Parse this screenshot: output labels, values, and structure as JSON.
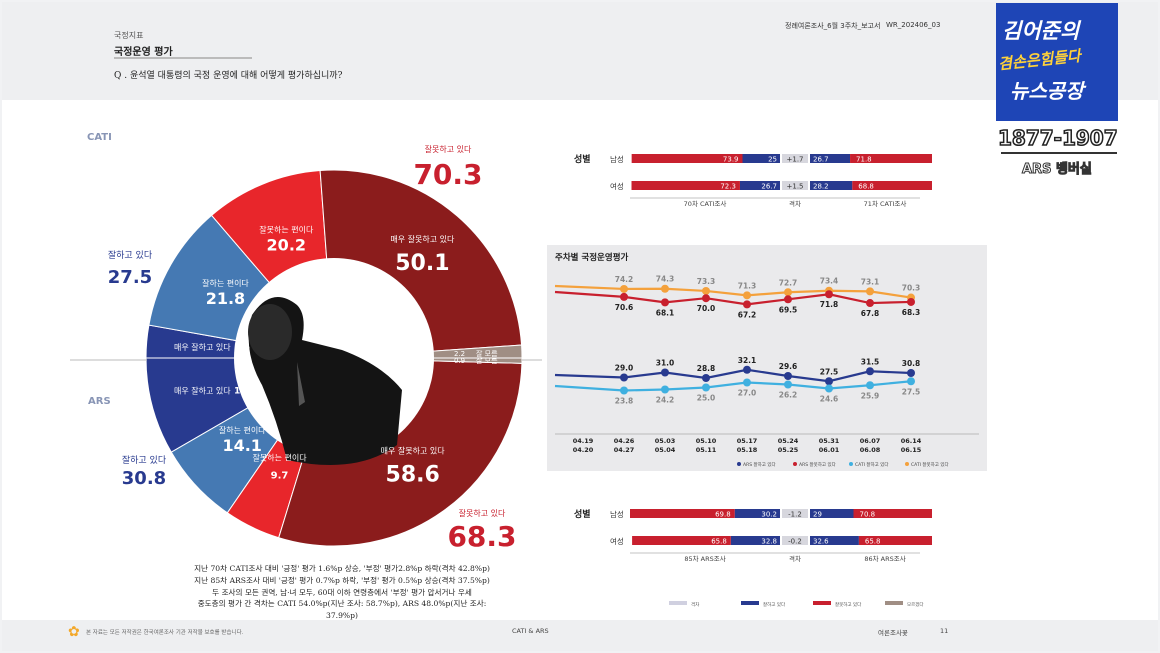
{
  "header": {
    "section": "국정지표",
    "title": "국정운영 평가",
    "question": "Q . 윤석열 대통령의 국정 운영에 대해 어떻게 평가하십니까?",
    "doc_name": "정례여론조사_6월 3주차_보고서",
    "doc_code": "WR_202406_03"
  },
  "logo": {
    "line1": "김어준의",
    "line2": "겸손은힘들다",
    "line3": "뉴스공장",
    "phone": "1877-1907",
    "sub": "ARS 뱅버실"
  },
  "colors": {
    "navy": "#283a8f",
    "mid_blue": "#4579b3",
    "red": "#e8262b",
    "dark_red": "#8b1c1c",
    "grey": "#a08e84",
    "orange": "#f4a13c",
    "light_blue": "#3fb0e0"
  },
  "chart_data": [
    {
      "type": "pie",
      "title": "",
      "ring_labels": {
        "outer": "CATI",
        "inner": "ARS"
      },
      "cati": {
        "slices": [
          {
            "label": "매우 잘하고 있다",
            "value": 5.6
          },
          {
            "label": "잘하는 편이다",
            "value": 21.8
          },
          {
            "label": "잘못하는 편이다",
            "value": 20.2
          },
          {
            "label": "매우 잘못하고 있다",
            "value": 50.1
          },
          {
            "label": "잘 모름",
            "value": 2.2
          }
        ],
        "positive_label": "잘하고 있다",
        "positive_total": 27.5,
        "negative_label": "잘못하고 있다",
        "negative_total": 70.3
      },
      "ars": {
        "slices": [
          {
            "label": "매우 잘하고 있다",
            "value": 16.7
          },
          {
            "label": "잘하는 편이다",
            "value": 14.1
          },
          {
            "label": "잘못하는 편이다",
            "value": 9.7
          },
          {
            "label": "매우 잘못하고 있다",
            "value": 58.6
          },
          {
            "label": "잘 모름",
            "value": 0.9
          }
        ],
        "positive_label": "잘하고 있다",
        "positive_total": 30.8,
        "negative_label": "잘못하고 있다",
        "negative_total": 68.3
      }
    },
    {
      "type": "bar",
      "title": "성별",
      "subtitle": "CATI",
      "categories": [
        "남성",
        "여성"
      ],
      "prev": [
        {
          "negative": 73.9,
          "positive": 25.0
        },
        {
          "negative": 72.3,
          "positive": 26.7
        }
      ],
      "diff": [
        "+1.7",
        "+1.5"
      ],
      "curr": [
        {
          "positive": 26.7,
          "negative": 71.8
        },
        {
          "positive": 28.2,
          "negative": 68.8
        }
      ],
      "axis": [
        "70차 CATI조사",
        "격차",
        "71차 CATI조사"
      ]
    },
    {
      "type": "line",
      "title": "주차별 국정운영평가",
      "x": [
        "04.19\n04.20",
        "04.26\n04.27",
        "05.03\n05.04",
        "05.10\n05.11",
        "05.17\n05.18",
        "05.24\n05.25",
        "05.31\n06.01",
        "06.07\n06.08",
        "06.14\n06.15"
      ],
      "series": [
        {
          "name": "ARS 잘하고 있다",
          "values": [
            null,
            29.0,
            31.0,
            28.8,
            32.1,
            29.6,
            27.5,
            31.5,
            30.8
          ]
        },
        {
          "name": "ARS 잘못하고 있다",
          "values": [
            null,
            70.6,
            68.1,
            70.0,
            67.2,
            69.5,
            71.8,
            67.8,
            68.3
          ]
        },
        {
          "name": "CATI 잘하고 있다",
          "values": [
            null,
            23.8,
            24.2,
            25.0,
            27.0,
            26.2,
            24.6,
            25.9,
            27.5
          ]
        },
        {
          "name": "CATI 잘못하고 있다",
          "values": [
            null,
            74.2,
            74.3,
            73.3,
            71.3,
            72.7,
            73.4,
            73.1,
            70.3
          ]
        }
      ]
    },
    {
      "type": "bar",
      "title": "성별",
      "subtitle": "ARS",
      "categories": [
        "남성",
        "여성"
      ],
      "prev": [
        {
          "negative": 69.8,
          "positive": 30.2
        },
        {
          "negative": 65.8,
          "positive": 32.8
        }
      ],
      "diff": [
        "-1.2",
        "-0.2"
      ],
      "curr": [
        {
          "positive": 29.0,
          "negative": 70.8
        },
        {
          "positive": 32.6,
          "negative": 65.8
        }
      ],
      "axis": [
        "85차 ARS조사",
        "격차",
        "86차 ARS조사"
      ]
    }
  ],
  "summary": [
    "지난 70차 CATI조사 대비 '긍정' 평가 1.6%p 상승, '부정' 평가2.8%p 하락(격차 42.8%p)",
    "지난 85차 ARS조사 대비 '긍정' 평가 0.7%p 하락, '부정' 평가 0.5%p 상승(격차 37.5%p)",
    "두 조사의 모든 권역, 남·녀 모두, 60대 이하 연령층에서 '부정' 평가 압서거나 우세",
    "중도층의 평가 간 격차는 CATI 54.0%p(지난 조사: 58.7%p), ARS 48.0%p(지난 조사: 37.9%p)"
  ],
  "legend_bottom": [
    "격차",
    "잘하고 있다",
    "잘못하고 있다",
    "모르겠다"
  ],
  "footer": {
    "note": "본 자료는 모든 저작권은 한국여론조사 기관 저작물 보호를 받습니다.",
    "center": "CATI & ARS",
    "right": "여론조사꽃",
    "page": "11"
  }
}
